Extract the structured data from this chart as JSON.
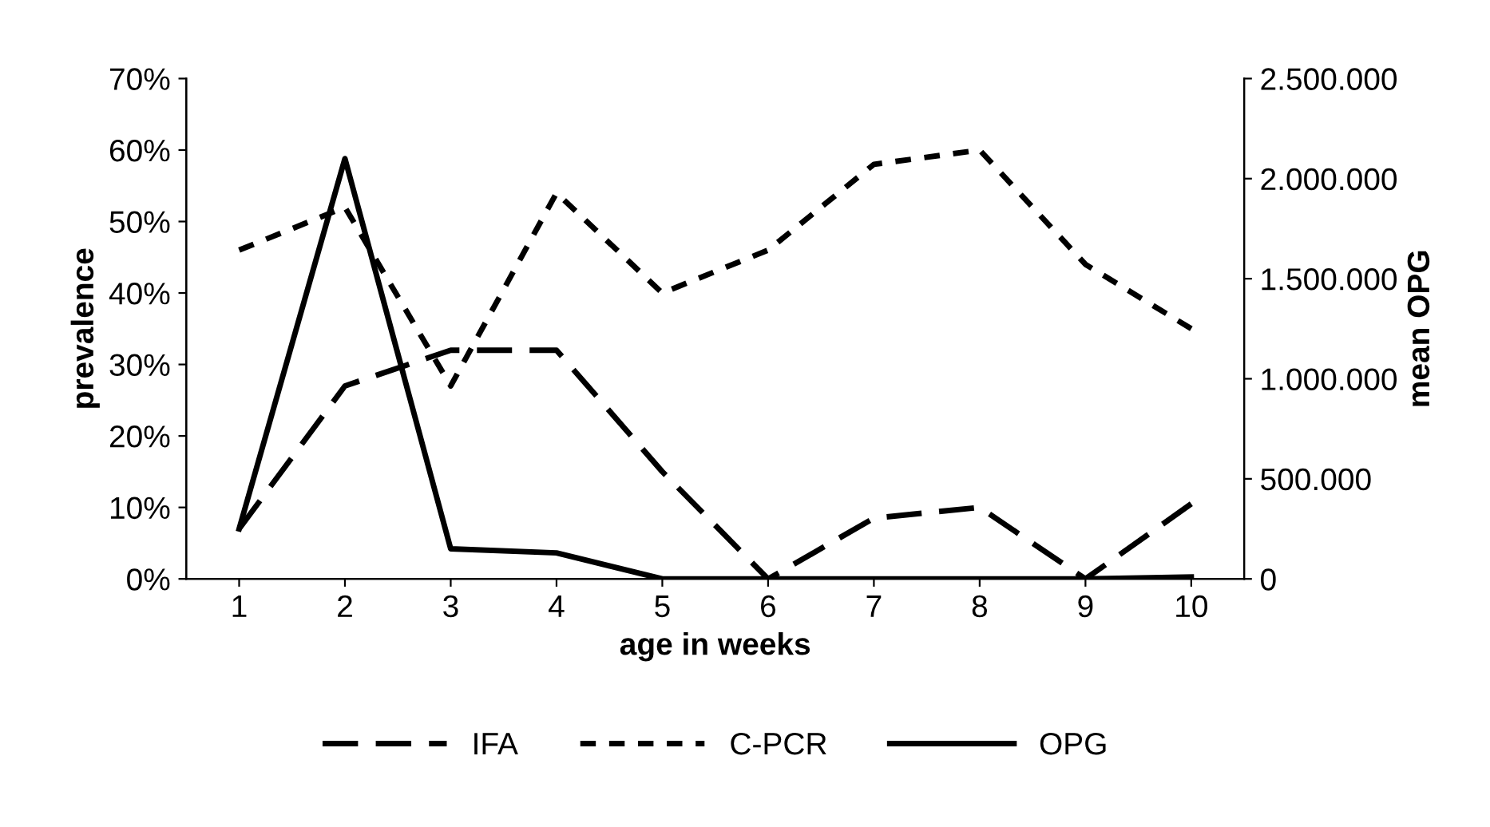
{
  "chart_data": {
    "type": "line",
    "xlabel": "age in weeks",
    "ylabel": "prevalence",
    "y2label": "mean OPG",
    "categories": [
      "1",
      "2",
      "3",
      "4",
      "5",
      "6",
      "7",
      "8",
      "9",
      "10"
    ],
    "series": [
      {
        "name": "IFA",
        "color": "#000000",
        "line_style": "dashed",
        "values": [
          7,
          27,
          32,
          32,
          15,
          0,
          8.5,
          10,
          0,
          10.5
        ]
      },
      {
        "name": "C-PCR",
        "color": "#000000",
        "line_style": "dotted",
        "values": [
          46,
          52,
          27,
          54,
          40,
          46,
          58,
          60,
          44,
          35
        ]
      },
      {
        "name": "OPG",
        "color": "#000000",
        "line_style": "solid",
        "axis": "y2",
        "values": [
          250000,
          2100000,
          150000,
          130000,
          0,
          0,
          0,
          0,
          0,
          10000
        ]
      }
    ],
    "ylim": [
      0,
      70
    ],
    "yticks": [
      {
        "value": 0,
        "label": "0%"
      },
      {
        "value": 10,
        "label": "10%"
      },
      {
        "value": 20,
        "label": "20%"
      },
      {
        "value": 30,
        "label": "30%"
      },
      {
        "value": 40,
        "label": "40%"
      },
      {
        "value": 50,
        "label": "50%"
      },
      {
        "value": 60,
        "label": "60%"
      },
      {
        "value": 70,
        "label": "70%"
      }
    ],
    "y2lim": [
      0,
      2500000
    ],
    "y2ticks": [
      0,
      {
        "value": 500000,
        "label": "500.000"
      },
      {
        "value": 1000000,
        "label": "1.000.000"
      },
      {
        "value": 1500000,
        "label": "1.500.000"
      },
      {
        "value": 2000000,
        "label": "2.000.000"
      },
      {
        "value": 2500000,
        "label": "2.500.000"
      }
    ],
    "grid": false,
    "legend": "bottom",
    "marker": "none"
  }
}
